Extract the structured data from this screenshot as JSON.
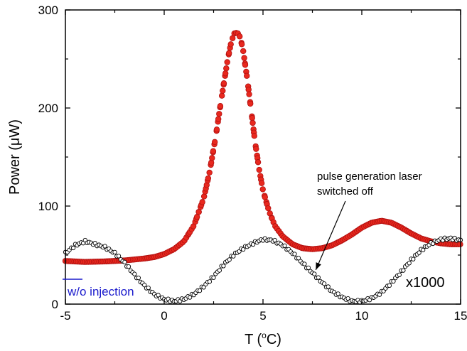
{
  "chart_data": {
    "type": "scatter",
    "xlabel": "T (°C)",
    "xlabel_parts": {
      "pre": "T (",
      "sup": "o",
      "post": "C)"
    },
    "ylabel": "Power (μW)",
    "ylabel_parts": {
      "pre": "Power (",
      "mu": "μ",
      "post": "W)"
    },
    "xlim": [
      -5,
      15
    ],
    "ylim": [
      0,
      300
    ],
    "xticks": [
      -5,
      0,
      5,
      10,
      15
    ],
    "yticks": [
      0,
      100,
      200,
      300
    ],
    "xtick_labels": [
      "-5",
      "0",
      "5",
      "10",
      "15"
    ],
    "ytick_labels": [
      "0",
      "100",
      "200",
      "300"
    ],
    "grid": false,
    "colors": {
      "injection": "#e8281e",
      "free_running": "#000000",
      "legend_line": "#1a1acc"
    },
    "series": [
      {
        "id": "with_injection",
        "marker": "filled-circle",
        "description_points": [
          [
            -5,
            44
          ],
          [
            -4,
            43
          ],
          [
            -3,
            43.5
          ],
          [
            -2,
            44.5
          ],
          [
            -1,
            46.5
          ],
          [
            -0.5,
            48
          ],
          [
            0,
            51
          ],
          [
            0.5,
            56
          ],
          [
            1,
            64
          ],
          [
            1.5,
            80
          ],
          [
            2,
            108
          ],
          [
            2.3,
            135
          ],
          [
            2.6,
            170
          ],
          [
            2.9,
            210
          ],
          [
            3.2,
            248
          ],
          [
            3.4,
            268
          ],
          [
            3.55,
            276
          ],
          [
            3.7,
            277
          ],
          [
            3.85,
            272
          ],
          [
            4.0,
            258
          ],
          [
            4.2,
            230
          ],
          [
            4.4,
            198
          ],
          [
            4.6,
            165
          ],
          [
            4.8,
            138
          ],
          [
            5.0,
            116
          ],
          [
            5.3,
            95
          ],
          [
            5.6,
            80
          ],
          [
            6.0,
            69
          ],
          [
            6.5,
            61
          ],
          [
            7,
            57
          ],
          [
            7.5,
            56
          ],
          [
            8,
            57
          ],
          [
            8.5,
            60
          ],
          [
            9,
            65
          ],
          [
            9.5,
            71
          ],
          [
            10,
            78
          ],
          [
            10.5,
            83
          ],
          [
            11,
            85
          ],
          [
            11.5,
            83
          ],
          [
            12,
            78
          ],
          [
            12.5,
            72
          ],
          [
            13,
            67
          ],
          [
            13.5,
            64
          ],
          [
            14,
            62
          ],
          [
            14.5,
            61
          ],
          [
            15,
            61
          ]
        ]
      },
      {
        "id": "without_injection",
        "marker": "open-circle",
        "description_points": [
          [
            -5,
            52
          ],
          [
            -4.5,
            60
          ],
          [
            -4,
            64
          ],
          [
            -3.5,
            61
          ],
          [
            -3,
            58
          ],
          [
            -2.5,
            52
          ],
          [
            -2,
            42
          ],
          [
            -1.5,
            30
          ],
          [
            -1,
            19
          ],
          [
            -0.5,
            10
          ],
          [
            0,
            5
          ],
          [
            0.5,
            3
          ],
          [
            1,
            5
          ],
          [
            1.5,
            10
          ],
          [
            2,
            18
          ],
          [
            2.5,
            28
          ],
          [
            3,
            40
          ],
          [
            3.5,
            50
          ],
          [
            4,
            57
          ],
          [
            4.5,
            62
          ],
          [
            5,
            66
          ],
          [
            5.5,
            65
          ],
          [
            6,
            60
          ],
          [
            6.5,
            52
          ],
          [
            7,
            42
          ],
          [
            7.5,
            32
          ],
          [
            8,
            22
          ],
          [
            8.5,
            13
          ],
          [
            9,
            7
          ],
          [
            9.5,
            3
          ],
          [
            10,
            3
          ],
          [
            10.5,
            6
          ],
          [
            11,
            12
          ],
          [
            11.5,
            22
          ],
          [
            12,
            33
          ],
          [
            12.5,
            45
          ],
          [
            13,
            55
          ],
          [
            13.5,
            62
          ],
          [
            14,
            66
          ],
          [
            14.5,
            67
          ],
          [
            15,
            65
          ]
        ]
      }
    ],
    "annotations": {
      "arrow_label_line1": "pulse generation laser",
      "arrow_label_line2": "switched off",
      "arrow_target": [
        7.6,
        32
      ],
      "scale_label": "x1000",
      "legend_label": "w/o injection"
    }
  }
}
